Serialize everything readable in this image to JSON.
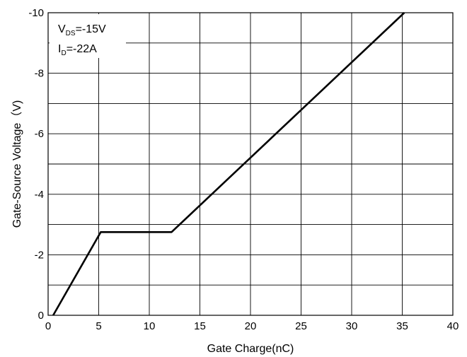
{
  "chart_data": {
    "type": "line",
    "xlabel": "Gate Charge(nC)",
    "ylabel": "Gate-Source Voltage（V)",
    "xlim": [
      0,
      40
    ],
    "ylim": [
      0,
      -10
    ],
    "x_ticks": [
      0,
      5,
      10,
      15,
      20,
      25,
      30,
      35,
      40
    ],
    "x_tick_labels": [
      "0",
      "5",
      "10",
      "15",
      "20",
      "25",
      "30",
      "35",
      "40"
    ],
    "y_ticks": [
      0,
      -2,
      -4,
      -6,
      -8,
      -10
    ],
    "y_tick_labels": [
      "0",
      "-2",
      "-4",
      "-6",
      "-8",
      "-10"
    ],
    "grid": true,
    "minor_y_gridlines_every": -1,
    "annotation": {
      "line1": {
        "main": "V",
        "sub": "DS",
        "rest": "=-15V"
      },
      "line2": {
        "main": "I",
        "sub": "D",
        "rest": "=-22A"
      }
    },
    "series": [
      {
        "color": "#000000",
        "x": [
          0.5,
          5.2,
          12.2,
          35.2
        ],
        "y": [
          0,
          -2.75,
          -2.75,
          -10
        ]
      }
    ]
  }
}
